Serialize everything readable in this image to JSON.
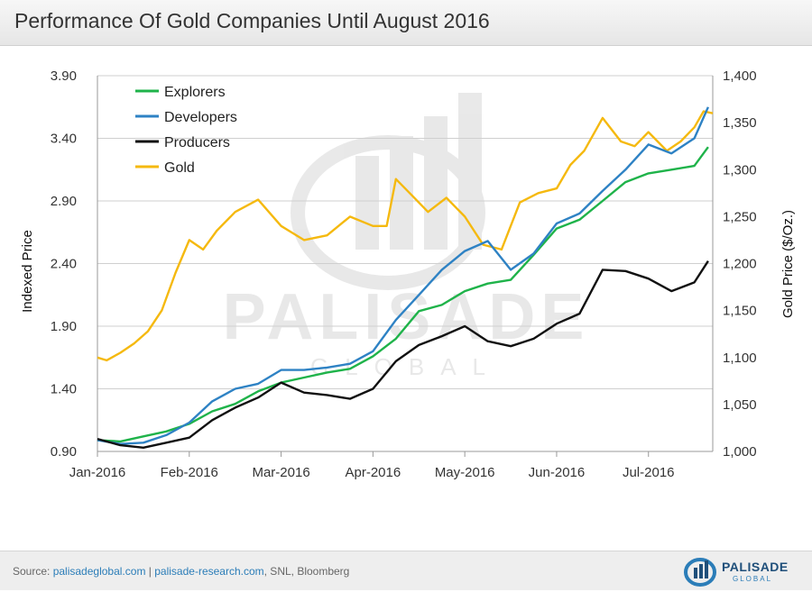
{
  "title": "Performance Of Gold Companies Until August 2016",
  "footer": {
    "source_label": "Source:",
    "link1": "palisadeglobal.com",
    "separator": "|",
    "link2": "palisade-research.com",
    "rest": ", SNL, Bloomberg"
  },
  "logo": {
    "name": "PALISADE",
    "sub": "GLOBAL"
  },
  "watermark": {
    "name": "PALISADE",
    "sub": "GLOBAL"
  },
  "colors": {
    "explorers": "#1fb34a",
    "developers": "#2e82c4",
    "producers": "#111111",
    "gold": "#f5b90f",
    "grid": "#cfcfcf"
  },
  "chart_data": {
    "type": "line",
    "title": "Performance Of Gold Companies Until August 2016",
    "ylabel": "Indexed Price",
    "y2label": "Gold Price ($/Oz.)",
    "ylim": [
      0.9,
      3.9
    ],
    "y2lim": [
      1000,
      1400
    ],
    "yticks": [
      "0.90",
      "1.40",
      "1.90",
      "2.40",
      "2.90",
      "3.40",
      "3.90"
    ],
    "y2ticks": [
      "1,000",
      "1,050",
      "1,100",
      "1,150",
      "1,200",
      "1,250",
      "1,300",
      "1,350",
      "1,400"
    ],
    "xticks": [
      "Jan-2016",
      "Feb-2016",
      "Mar-2016",
      "Apr-2016",
      "May-2016",
      "Jun-2016",
      "Jul-2016"
    ],
    "xlim": [
      0,
      6.7
    ],
    "grid": true,
    "legend_position": "top-left",
    "series": [
      {
        "name": "Explorers",
        "axis": "left",
        "x": [
          0,
          0.25,
          0.5,
          0.75,
          1.0,
          1.25,
          1.5,
          1.75,
          2.0,
          2.25,
          2.5,
          2.75,
          3.0,
          3.25,
          3.5,
          3.75,
          4.0,
          4.25,
          4.5,
          4.75,
          5.0,
          5.25,
          5.5,
          5.75,
          6.0,
          6.25,
          6.5,
          6.65
        ],
        "values": [
          0.99,
          0.98,
          1.02,
          1.06,
          1.12,
          1.22,
          1.28,
          1.38,
          1.45,
          1.49,
          1.53,
          1.56,
          1.66,
          1.8,
          2.02,
          2.07,
          2.18,
          2.24,
          2.27,
          2.47,
          2.68,
          2.75,
          2.9,
          3.05,
          3.12,
          3.15,
          3.18,
          3.33
        ]
      },
      {
        "name": "Developers",
        "axis": "left",
        "x": [
          0,
          0.25,
          0.5,
          0.75,
          1.0,
          1.25,
          1.5,
          1.75,
          2.0,
          2.25,
          2.5,
          2.75,
          3.0,
          3.25,
          3.5,
          3.75,
          4.0,
          4.25,
          4.5,
          4.75,
          5.0,
          5.25,
          5.5,
          5.75,
          6.0,
          6.25,
          6.5,
          6.65
        ],
        "values": [
          0.99,
          0.96,
          0.97,
          1.03,
          1.13,
          1.3,
          1.4,
          1.44,
          1.55,
          1.55,
          1.57,
          1.6,
          1.7,
          1.95,
          2.15,
          2.35,
          2.5,
          2.58,
          2.35,
          2.48,
          2.72,
          2.8,
          2.98,
          3.15,
          3.35,
          3.28,
          3.4,
          3.65
        ]
      },
      {
        "name": "Producers",
        "axis": "left",
        "x": [
          0,
          0.25,
          0.5,
          0.75,
          1.0,
          1.25,
          1.5,
          1.75,
          2.0,
          2.25,
          2.5,
          2.75,
          3.0,
          3.25,
          3.5,
          3.75,
          4.0,
          4.25,
          4.5,
          4.75,
          5.0,
          5.25,
          5.5,
          5.75,
          6.0,
          6.25,
          6.5,
          6.65
        ],
        "values": [
          1.0,
          0.95,
          0.93,
          0.97,
          1.01,
          1.15,
          1.25,
          1.33,
          1.45,
          1.37,
          1.35,
          1.32,
          1.4,
          1.62,
          1.75,
          1.82,
          1.9,
          1.78,
          1.74,
          1.8,
          1.92,
          2.0,
          2.35,
          2.34,
          2.28,
          2.18,
          2.25,
          2.42
        ]
      },
      {
        "name": "Gold",
        "axis": "right",
        "x": [
          0,
          0.1,
          0.25,
          0.4,
          0.55,
          0.7,
          0.85,
          1.0,
          1.15,
          1.3,
          1.5,
          1.75,
          2.0,
          2.25,
          2.5,
          2.75,
          3.0,
          3.15,
          3.25,
          3.4,
          3.6,
          3.8,
          4.0,
          4.2,
          4.4,
          4.6,
          4.8,
          5.0,
          5.15,
          5.3,
          5.5,
          5.7,
          5.85,
          6.0,
          6.2,
          6.35,
          6.5,
          6.6,
          6.7
        ],
        "values": [
          1100,
          1097,
          1105,
          1115,
          1128,
          1150,
          1190,
          1225,
          1215,
          1235,
          1255,
          1268,
          1240,
          1225,
          1230,
          1250,
          1240,
          1240,
          1290,
          1275,
          1255,
          1270,
          1250,
          1220,
          1215,
          1265,
          1275,
          1280,
          1305,
          1320,
          1355,
          1330,
          1325,
          1340,
          1320,
          1330,
          1345,
          1362,
          1360
        ]
      }
    ]
  }
}
